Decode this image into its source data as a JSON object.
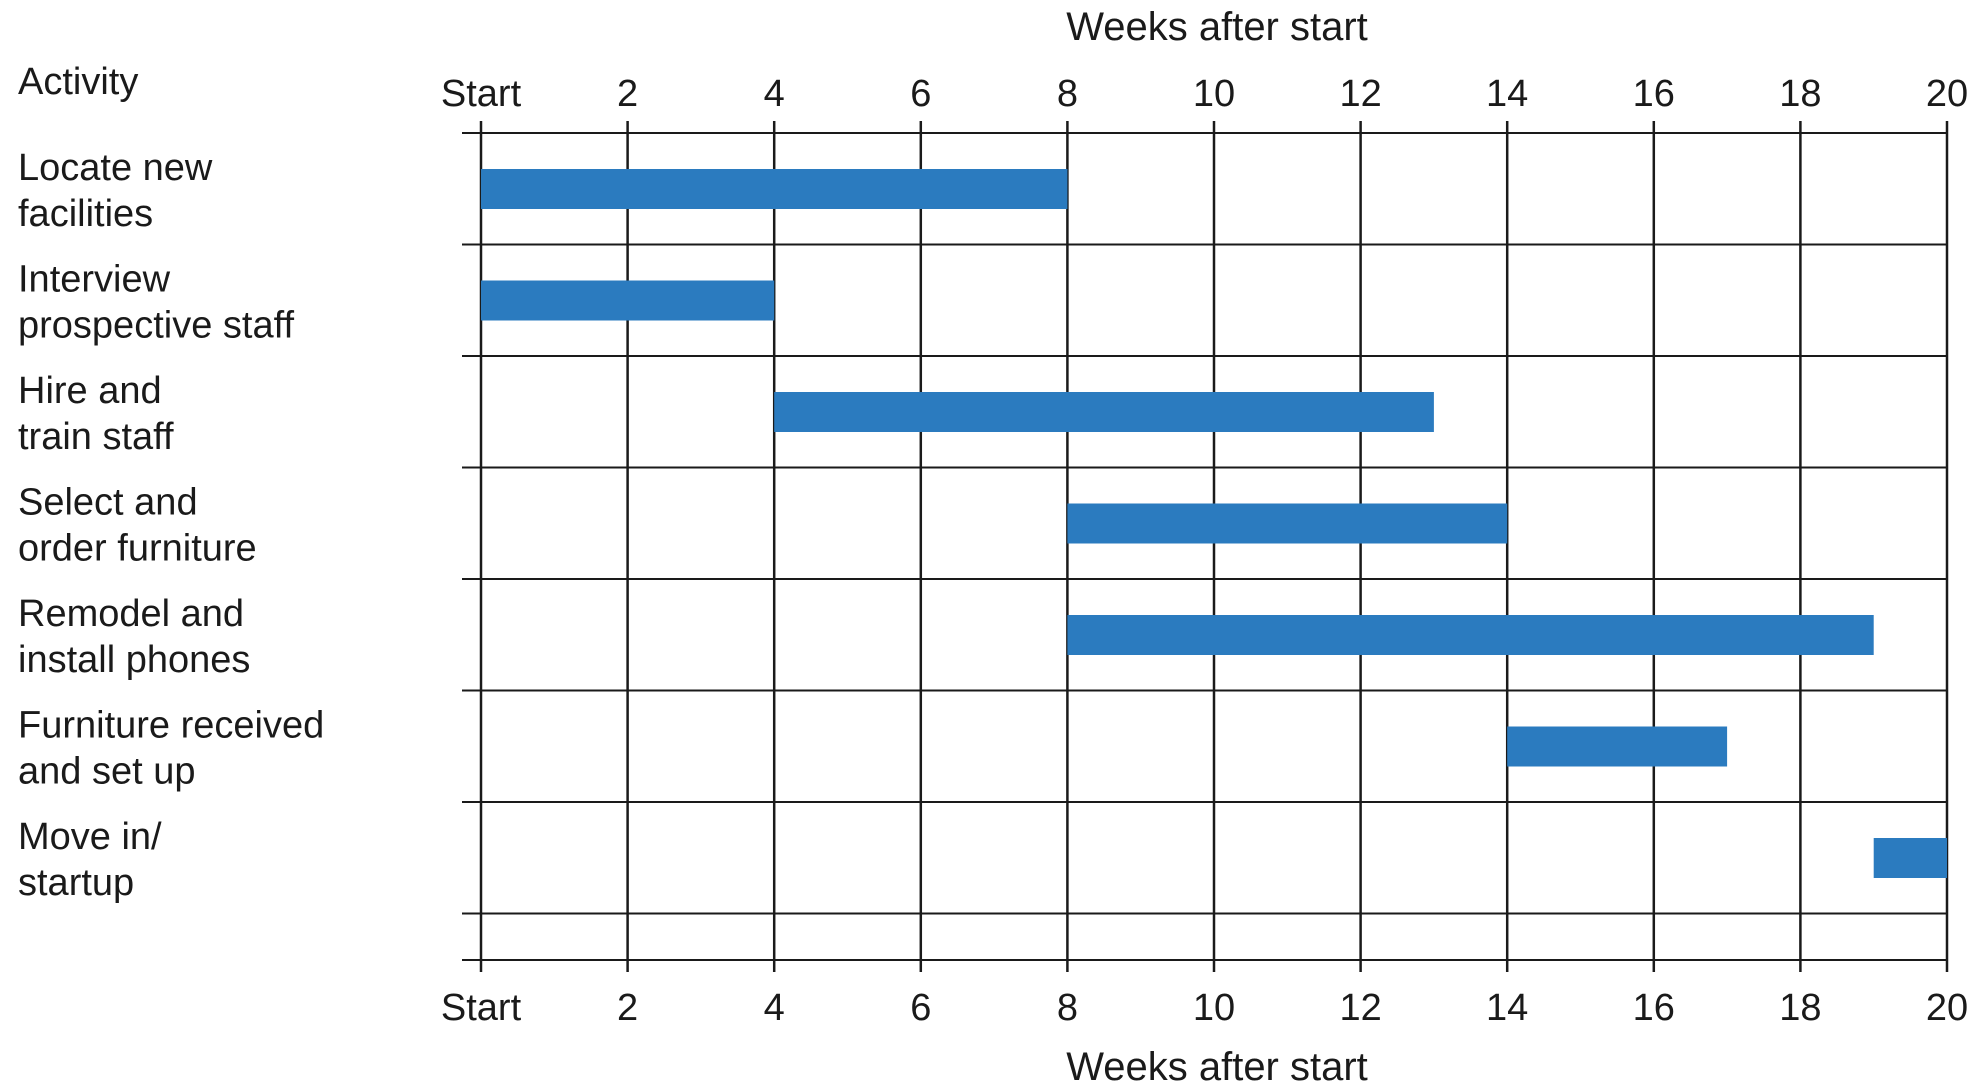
{
  "chart_data": {
    "type": "bar",
    "orientation": "horizontal-gantt",
    "column_header": "Activity",
    "xlabel_top": "Weeks after start",
    "xlabel_bottom": "Weeks after start",
    "xlim": [
      0,
      20
    ],
    "x_ticks": [
      {
        "value": 0,
        "label": "Start"
      },
      {
        "value": 2,
        "label": "2"
      },
      {
        "value": 4,
        "label": "4"
      },
      {
        "value": 6,
        "label": "6"
      },
      {
        "value": 8,
        "label": "8"
      },
      {
        "value": 10,
        "label": "10"
      },
      {
        "value": 12,
        "label": "12"
      },
      {
        "value": 14,
        "label": "14"
      },
      {
        "value": 16,
        "label": "16"
      },
      {
        "value": 18,
        "label": "18"
      },
      {
        "value": 20,
        "label": "20"
      }
    ],
    "grid": true,
    "bar_color": "#2b7bbf",
    "activities": [
      {
        "name": "locate-new-facilities",
        "lines": [
          "Locate new",
          "facilities"
        ],
        "start": 0,
        "end": 8
      },
      {
        "name": "interview-prospective-staff",
        "lines": [
          "Interview",
          "prospective staff"
        ],
        "start": 0,
        "end": 4
      },
      {
        "name": "hire-and-train-staff",
        "lines": [
          "Hire and",
          "train staff"
        ],
        "start": 4,
        "end": 13
      },
      {
        "name": "select-and-order-furniture",
        "lines": [
          "Select and",
          "order furniture"
        ],
        "start": 8,
        "end": 14
      },
      {
        "name": "remodel-and-install-phones",
        "lines": [
          "Remodel and",
          "install phones"
        ],
        "start": 8,
        "end": 19
      },
      {
        "name": "furniture-received-and-set-up",
        "lines": [
          "Furniture received",
          "and set up"
        ],
        "start": 14,
        "end": 17
      },
      {
        "name": "move-in-startup",
        "lines": [
          "Move in/",
          "startup"
        ],
        "start": 19,
        "end": 20
      }
    ]
  }
}
